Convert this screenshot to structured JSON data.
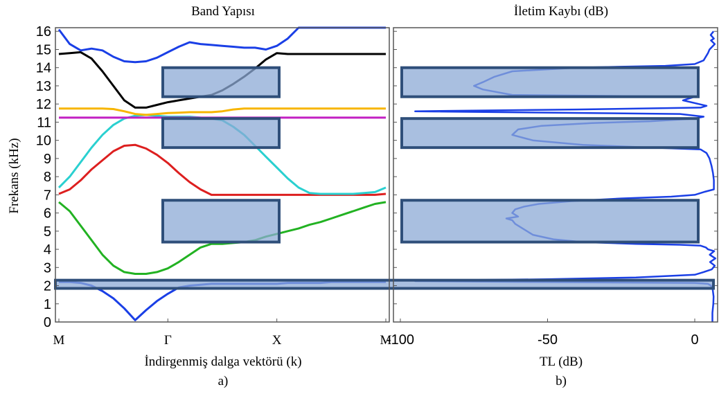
{
  "chart_data": [
    {
      "type": "line",
      "title": "Band Yapısı",
      "xlabel": "İndirgenmiş dalga vektörü (k)",
      "ylabel": "Frekans (kHz)",
      "caption": "a)",
      "ylim": [
        0,
        16.2
      ],
      "y_ticks": [
        0,
        1,
        2,
        3,
        4,
        5,
        6,
        7,
        8,
        9,
        10,
        11,
        12,
        13,
        14,
        15,
        16
      ],
      "x_categories": [
        "M",
        "Γ",
        "X",
        "M"
      ],
      "grid": false,
      "x": [
        0,
        0.1,
        0.2,
        0.3,
        0.4,
        0.5,
        0.6,
        0.7,
        0.8,
        0.9,
        1.0,
        1.1,
        1.2,
        1.3,
        1.4,
        1.5,
        1.6,
        1.7,
        1.8,
        1.9,
        2.0,
        2.1,
        2.2,
        2.3,
        2.4,
        2.5,
        2.6,
        2.7,
        2.8,
        2.9,
        3.0
      ],
      "series": [
        {
          "color": "#1a3fe6",
          "values": [
            2.2,
            2.2,
            2.15,
            2.0,
            1.7,
            1.3,
            0.75,
            0.1,
            0.65,
            1.15,
            1.55,
            1.9,
            2.0,
            2.05,
            2.1,
            2.1,
            2.1,
            2.1,
            2.1,
            2.1,
            2.1,
            2.15,
            2.15,
            2.15,
            2.15,
            2.2,
            2.2,
            2.2,
            2.2,
            2.2,
            2.2
          ]
        },
        {
          "color": "#22b222",
          "values": [
            6.6,
            6.1,
            5.3,
            4.5,
            3.7,
            3.1,
            2.75,
            2.65,
            2.65,
            2.75,
            2.95,
            3.3,
            3.7,
            4.1,
            4.3,
            4.3,
            4.35,
            4.4,
            4.5,
            4.7,
            4.85,
            5.0,
            5.15,
            5.35,
            5.5,
            5.7,
            5.9,
            6.1,
            6.3,
            6.5,
            6.6
          ]
        },
        {
          "color": "#dd1f1f",
          "values": [
            7.05,
            7.3,
            7.8,
            8.4,
            8.9,
            9.4,
            9.7,
            9.75,
            9.55,
            9.2,
            8.75,
            8.2,
            7.7,
            7.3,
            7.0,
            7.0,
            7.0,
            7.0,
            7.0,
            7.0,
            7.0,
            7.0,
            7.0,
            7.0,
            7.0,
            7.0,
            7.0,
            7.0,
            7.0,
            7.0,
            7.05
          ]
        },
        {
          "color": "#2ad0d0",
          "values": [
            7.4,
            8.0,
            8.8,
            9.6,
            10.3,
            10.85,
            11.2,
            11.35,
            11.4,
            11.35,
            11.3,
            11.3,
            11.3,
            11.25,
            11.2,
            11.1,
            10.75,
            10.3,
            9.7,
            9.1,
            8.5,
            7.9,
            7.4,
            7.1,
            7.05,
            7.05,
            7.05,
            7.05,
            7.1,
            7.15,
            7.4
          ]
        },
        {
          "color": "#c21fc2",
          "values": [
            11.25,
            11.25,
            11.25,
            11.25,
            11.25,
            11.25,
            11.25,
            11.25,
            11.25,
            11.25,
            11.25,
            11.25,
            11.25,
            11.25,
            11.25,
            11.25,
            11.25,
            11.25,
            11.25,
            11.25,
            11.25,
            11.25,
            11.25,
            11.25,
            11.25,
            11.25,
            11.25,
            11.25,
            11.25,
            11.25,
            11.25
          ]
        },
        {
          "color": "#f7b500",
          "values": [
            11.75,
            11.75,
            11.75,
            11.75,
            11.75,
            11.72,
            11.6,
            11.45,
            11.4,
            11.45,
            11.5,
            11.52,
            11.55,
            11.55,
            11.55,
            11.6,
            11.7,
            11.75,
            11.75,
            11.75,
            11.75,
            11.75,
            11.75,
            11.75,
            11.75,
            11.75,
            11.75,
            11.75,
            11.75,
            11.75,
            11.75
          ]
        },
        {
          "color": "#000000",
          "values": [
            14.75,
            14.8,
            14.85,
            14.5,
            13.8,
            13.0,
            12.2,
            11.8,
            11.8,
            11.95,
            12.1,
            12.2,
            12.3,
            12.4,
            12.5,
            12.75,
            13.1,
            13.5,
            13.95,
            14.45,
            14.8,
            14.75,
            14.75,
            14.75,
            14.75,
            14.75,
            14.75,
            14.75,
            14.75,
            14.75,
            14.75
          ]
        },
        {
          "color": "#1a3fe6",
          "values": [
            16.1,
            15.3,
            14.95,
            15.05,
            14.95,
            14.6,
            14.35,
            14.3,
            14.35,
            14.55,
            14.85,
            15.15,
            15.4,
            15.3,
            15.25,
            15.2,
            15.15,
            15.1,
            15.1,
            15.0,
            15.2,
            15.6,
            16.2,
            16.2,
            16.2,
            16.2,
            16.2,
            16.2,
            16.2,
            16.2,
            16.2
          ]
        }
      ],
      "band_gaps": [
        [
          12.4,
          14.0
        ],
        [
          9.6,
          11.2
        ],
        [
          4.4,
          6.7
        ]
      ],
      "lower_gap": [
        1.85,
        2.3
      ]
    },
    {
      "type": "line",
      "title": "İletim Kaybı (dB)",
      "xlabel": "TL (dB)",
      "caption": "b)",
      "xlim": [
        -100,
        7
      ],
      "x_ticks": [
        -100,
        -50,
        0
      ],
      "ylim": [
        0,
        16.2
      ],
      "grid": false,
      "series": [
        {
          "color": "#1a3fe6",
          "points": [
            [
              6,
              0.0
            ],
            [
              6,
              0.5
            ],
            [
              6.3,
              1.0
            ],
            [
              6.4,
              1.4
            ],
            [
              6.1,
              1.8
            ],
            [
              5.5,
              2.0
            ],
            [
              4.5,
              2.1
            ],
            [
              0,
              2.15
            ],
            [
              -55,
              2.2
            ],
            [
              -95,
              2.25
            ],
            [
              -85,
              2.3
            ],
            [
              -50,
              2.35
            ],
            [
              -20,
              2.45
            ],
            [
              0,
              2.6
            ],
            [
              3,
              2.75
            ],
            [
              5.8,
              2.9
            ],
            [
              6.8,
              3.1
            ],
            [
              5.2,
              3.3
            ],
            [
              7,
              3.5
            ],
            [
              5.1,
              3.7
            ],
            [
              6.6,
              3.9
            ],
            [
              4.5,
              4.0
            ],
            [
              3.8,
              4.1
            ],
            [
              2,
              4.2
            ],
            [
              -5,
              4.25
            ],
            [
              -20,
              4.3
            ],
            [
              -38,
              4.4
            ],
            [
              -48,
              4.55
            ],
            [
              -55,
              4.8
            ],
            [
              -58,
              5.1
            ],
            [
              -61,
              5.4
            ],
            [
              -62,
              5.6
            ],
            [
              -64,
              5.7
            ],
            [
              -60,
              5.8
            ],
            [
              -62,
              6.0
            ],
            [
              -61,
              6.2
            ],
            [
              -58,
              6.35
            ],
            [
              -53,
              6.5
            ],
            [
              -42,
              6.65
            ],
            [
              -25,
              6.8
            ],
            [
              -8,
              6.9
            ],
            [
              0,
              7.0
            ],
            [
              3,
              7.15
            ],
            [
              6.5,
              7.3
            ],
            [
              6.5,
              7.8
            ],
            [
              6.2,
              8.2
            ],
            [
              5.7,
              8.6
            ],
            [
              5.0,
              9.0
            ],
            [
              4.0,
              9.3
            ],
            [
              2,
              9.5
            ],
            [
              -15,
              9.6
            ],
            [
              -38,
              9.75
            ],
            [
              -55,
              10.0
            ],
            [
              -62,
              10.3
            ],
            [
              -60,
              10.6
            ],
            [
              -52,
              10.8
            ],
            [
              -35,
              10.95
            ],
            [
              -15,
              11.05
            ],
            [
              0,
              11.2
            ],
            [
              3,
              11.3
            ],
            [
              -5,
              11.45
            ],
            [
              -95,
              11.6
            ],
            [
              -40,
              11.7
            ],
            [
              2,
              11.8
            ],
            [
              4,
              11.9
            ],
            [
              -4,
              12.2
            ],
            [
              0,
              12.4
            ],
            [
              -62,
              12.5
            ],
            [
              -72,
              12.8
            ],
            [
              -75,
              13.0
            ],
            [
              -72,
              13.2
            ],
            [
              -68,
              13.5
            ],
            [
              -62,
              13.8
            ],
            [
              -40,
              14.0
            ],
            [
              -10,
              14.1
            ],
            [
              0,
              14.2
            ],
            [
              3,
              14.4
            ],
            [
              4.5,
              14.8
            ],
            [
              5,
              15.0
            ],
            [
              6.8,
              15.3
            ],
            [
              5.5,
              15.5
            ],
            [
              6.5,
              15.6
            ],
            [
              5.4,
              15.8
            ],
            [
              6.4,
              16.0
            ]
          ]
        }
      ],
      "band_gaps": [
        [
          12.4,
          14.0
        ],
        [
          9.6,
          11.2
        ],
        [
          4.4,
          6.7
        ]
      ]
    }
  ]
}
